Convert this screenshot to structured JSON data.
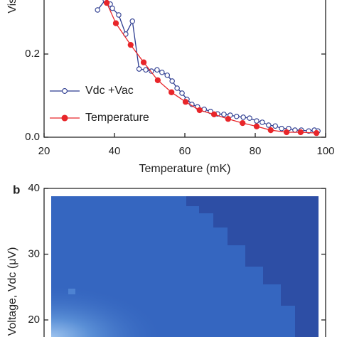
{
  "chart_data": [
    {
      "type": "line",
      "xlabel": "Temperature (mK)",
      "ylabel": "Visibility",
      "xlim": [
        20,
        100
      ],
      "xticks": [
        20,
        40,
        60,
        80,
        100
      ],
      "ylim": [
        0,
        0.33
      ],
      "yticks": [
        {
          "value": 0,
          "label": "0.0"
        },
        0.2
      ],
      "legend": "lower left",
      "series": [
        {
          "name": "Vdc +Vac",
          "color": "#2b3a8f",
          "marker": "open",
          "x": [
            35.2,
            37.4,
            38.8,
            39.4,
            41.2,
            43.2,
            45.1,
            47,
            48.9,
            50.5,
            52.1,
            53.5,
            55,
            56.4,
            57.8,
            59.2,
            60.6,
            62,
            63.6,
            65.5,
            67.3,
            69.3,
            71.1,
            72.9,
            74.7,
            76.6,
            78.4,
            80.4,
            82,
            83.8,
            85.7,
            87.5,
            89.5,
            91.3,
            93.1,
            95.2,
            96.8,
            97.8
          ],
          "values": [
            0.306,
            0.33,
            0.32,
            0.31,
            0.294,
            0.248,
            0.279,
            0.164,
            0.162,
            0.159,
            0.162,
            0.156,
            0.149,
            0.135,
            0.118,
            0.106,
            0.091,
            0.079,
            0.073,
            0.067,
            0.062,
            0.056,
            0.055,
            0.053,
            0.05,
            0.048,
            0.046,
            0.039,
            0.036,
            0.029,
            0.027,
            0.021,
            0.021,
            0.017,
            0.017,
            0.015,
            0.017,
            0.015
          ]
        },
        {
          "name": "Temperature",
          "color": "#e8262a",
          "marker": "filled",
          "x": [
            37.8,
            40.4,
            44.6,
            48.3,
            52.3,
            56.2,
            60.2,
            64.2,
            68.3,
            72.3,
            76.4,
            80.4,
            84.4,
            88.9,
            92.9,
            97.4
          ],
          "values": [
            0.323,
            0.274,
            0.222,
            0.18,
            0.137,
            0.108,
            0.085,
            0.065,
            0.055,
            0.044,
            0.034,
            0.026,
            0.017,
            0.012,
            0.012,
            0.01
          ]
        }
      ]
    },
    {
      "type": "heatmap",
      "panel_label": "b",
      "ylabel": "Voltage, Vdc (μV)",
      "ylim": [
        17.4,
        40
      ],
      "yticks": [
        20,
        30,
        40
      ]
    }
  ]
}
